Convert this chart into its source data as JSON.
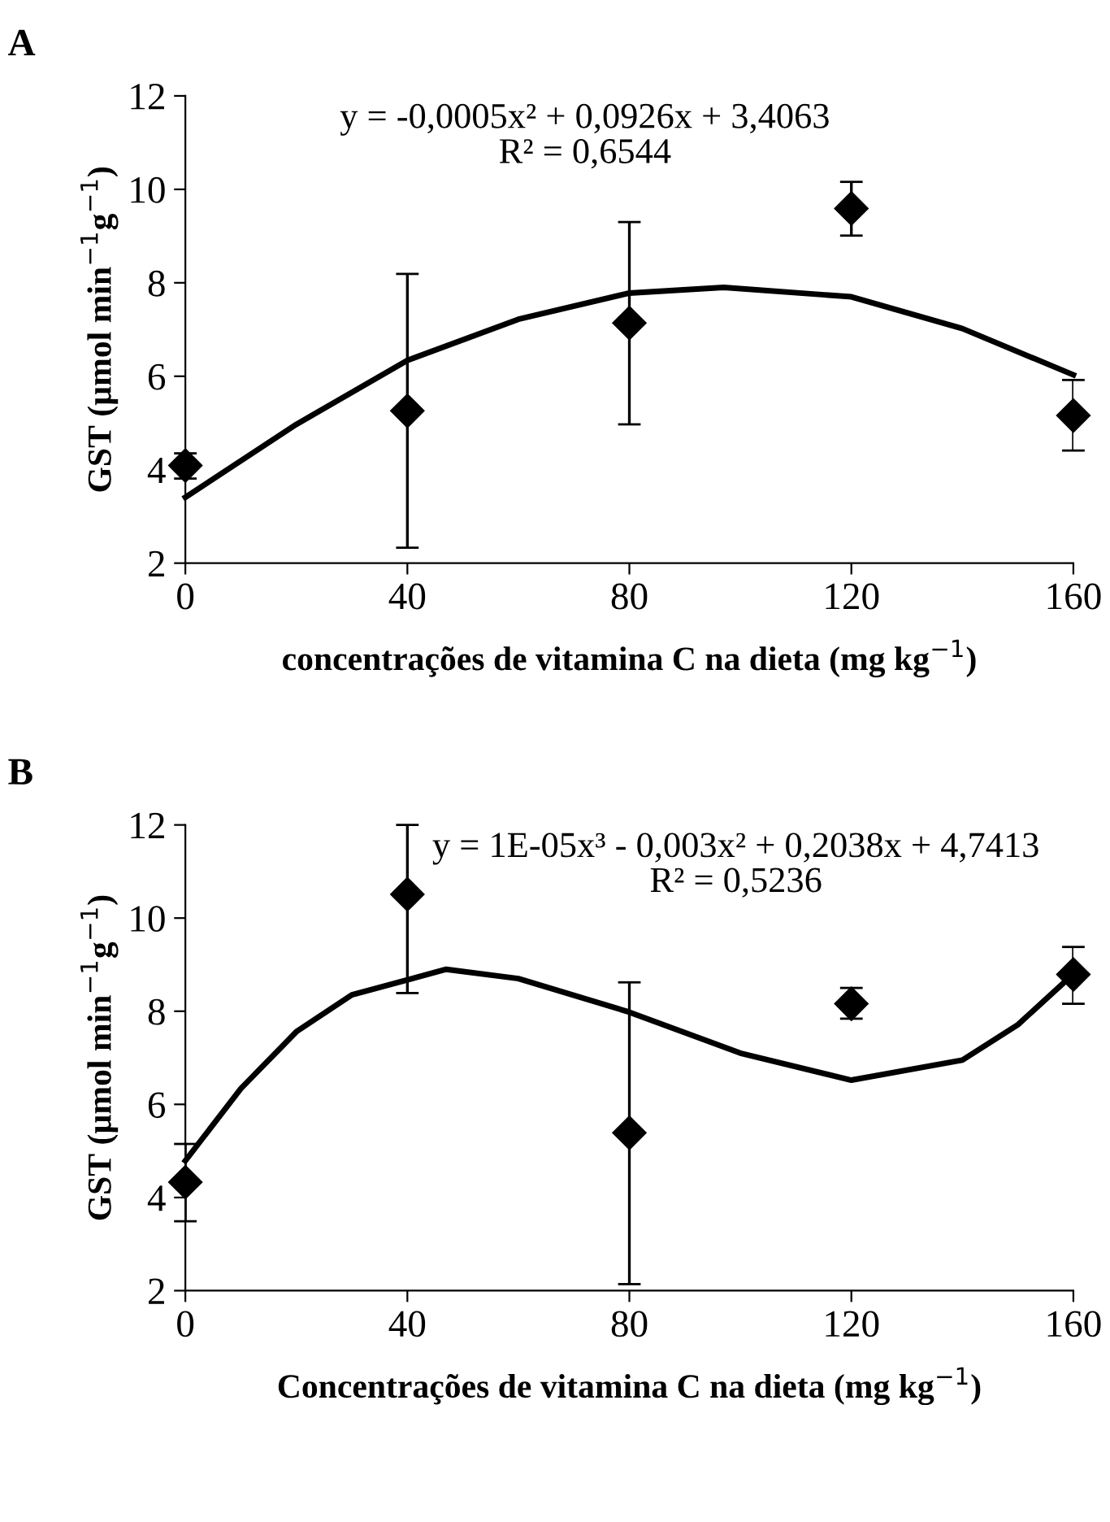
{
  "chart_data": [
    {
      "type": "scatter",
      "title": "A",
      "xlabel": "concentrações de vitamina C na dieta (mg kg$^{−1}$)",
      "ylabel": "GST (µmol min$^{−1}$g$^{−1}$)",
      "annotations": [
        "y = -0,0005x² + 0,0926x + 3,4063",
        "R² = 0,6544"
      ],
      "xlim": [
        0,
        160
      ],
      "xticks": [
        0,
        40,
        80,
        120,
        160
      ],
      "ylim": [
        2,
        12
      ],
      "yticks": [
        2,
        4,
        6,
        8,
        10,
        12
      ],
      "grid": false,
      "legend": false,
      "marker": "diamond",
      "series": [
        {
          "color": "#000000",
          "x": [
            0,
            40,
            80,
            120,
            160
          ],
          "values": [
            4.09,
            5.26,
            7.14,
            9.59,
            5.16
          ],
          "errors": [
            [
              3.81,
              4.35
            ],
            [
              2.33,
              8.19
            ],
            [
              4.97,
              9.3
            ],
            [
              9.01,
              10.16
            ],
            [
              4.41,
              5.92
            ]
          ]
        },
        {
          "type": "line",
          "color": "#000000",
          "line_style": "solid",
          "marker": "none",
          "x": [
            0,
            20,
            40,
            60,
            80,
            97,
            120,
            140,
            160
          ],
          "values": [
            3.41,
            4.97,
            6.34,
            7.22,
            7.78,
            7.9,
            7.7,
            7.02,
            6.03
          ]
        }
      ]
    },
    {
      "type": "scatter",
      "title": "B",
      "xlabel": "Concentrações de vitamina C na dieta (mg kg$^{−1}$)",
      "ylabel": "GST (µmol min$^{−1}$g$^{−1}$)",
      "annotations": [
        "y = 1E-05x³ - 0,003x² + 0,2038x + 4,7413",
        "R² = 0,5236"
      ],
      "xlim": [
        0,
        160
      ],
      "xticks": [
        0,
        40,
        80,
        120,
        160
      ],
      "ylim": [
        2,
        12
      ],
      "yticks": [
        2,
        4,
        6,
        8,
        10,
        12
      ],
      "grid": false,
      "legend": false,
      "marker": "diamond",
      "series": [
        {
          "color": "#000000",
          "x": [
            0,
            40,
            80,
            120,
            160
          ],
          "values": [
            4.33,
            10.51,
            5.39,
            8.16,
            8.79
          ],
          "errors": [
            [
              3.49,
              5.15
            ],
            [
              8.39,
              12.0
            ],
            [
              2.14,
              8.62
            ],
            [
              7.84,
              8.5
            ],
            [
              8.16,
              9.38
            ]
          ]
        },
        {
          "type": "line",
          "color": "#000000",
          "line_style": "solid",
          "marker": "none",
          "x": [
            0,
            10,
            20,
            30,
            47,
            60,
            80,
            100,
            120,
            140,
            150,
            160
          ],
          "values": [
            4.79,
            6.34,
            7.56,
            8.35,
            8.9,
            8.7,
            7.98,
            7.1,
            6.52,
            6.95,
            7.71,
            8.8
          ]
        }
      ]
    }
  ]
}
